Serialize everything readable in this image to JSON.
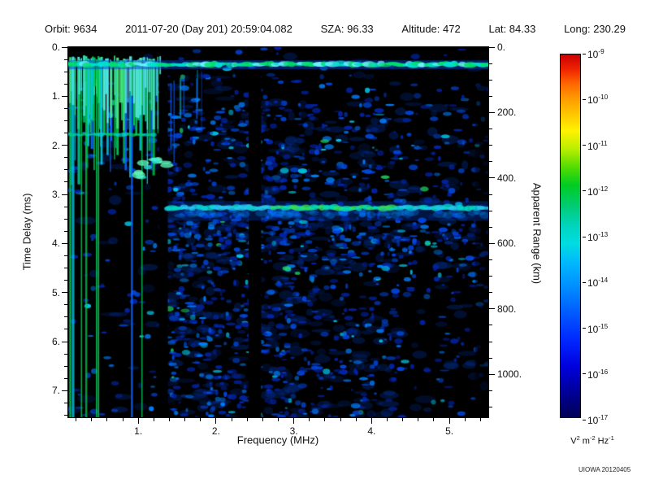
{
  "header": {
    "items": [
      "Orbit: 9634",
      "2011-07-20 (Day 201) 20:59:04.082",
      "SZA:  96.33",
      "Altitude:    472",
      "Lat:  84.33",
      "Long: 230.29"
    ]
  },
  "chart_data": {
    "type": "heatmap",
    "description": "Radar sounder ionogram: received spectral density vs frequency and time delay",
    "xlabel": "Frequency (MHz)",
    "x_range": [
      0.1,
      5.5
    ],
    "x_ticks": [
      1,
      2,
      3,
      4,
      5
    ],
    "x_minor_step": 0.2,
    "ylabel_left": "Time Delay (ms)",
    "y_range": [
      0,
      7.54
    ],
    "y_ticks_left": [
      0,
      1,
      2,
      3,
      4,
      5,
      6,
      7
    ],
    "y_minor_step": 0.25,
    "ylabel_right": "Apparent Range (km)",
    "y_ticks_right": [
      0,
      200,
      400,
      600,
      800,
      1000
    ],
    "y_right_minor_step": 50,
    "range_km_per_ms": 150,
    "background": "#000000",
    "colorbar": {
      "tick_exponents": [
        -9,
        -10,
        -11,
        -12,
        -13,
        -14,
        -15,
        -16,
        -17
      ],
      "unit_parts": [
        [
          "V",
          "2"
        ],
        [
          " m",
          "-2"
        ],
        [
          " Hz",
          "-1"
        ]
      ],
      "gradient_stops": [
        [
          0.0,
          "#cc0000"
        ],
        [
          0.04,
          "#ee2200"
        ],
        [
          0.08,
          "#ff6600"
        ],
        [
          0.12,
          "#ff9900"
        ],
        [
          0.17,
          "#ffcc00"
        ],
        [
          0.21,
          "#fff200"
        ],
        [
          0.26,
          "#baee00"
        ],
        [
          0.31,
          "#55dd00"
        ],
        [
          0.36,
          "#00cc22"
        ],
        [
          0.42,
          "#00cc77"
        ],
        [
          0.47,
          "#00d4bb"
        ],
        [
          0.52,
          "#00dde0"
        ],
        [
          0.58,
          "#00b4ff"
        ],
        [
          0.65,
          "#0087ff"
        ],
        [
          0.72,
          "#0055ff"
        ],
        [
          0.79,
          "#0026ff"
        ],
        [
          0.86,
          "#0000dd"
        ],
        [
          0.93,
          "#000099"
        ],
        [
          1.0,
          "#000055"
        ]
      ]
    },
    "features": {
      "seed": 20120405,
      "ionosphere_echo_delay_ms": 0.35,
      "surface_echo_delay_ms": 3.27,
      "surface_echo_min_freq_mhz": 1.38,
      "plasma_line_max_freq_mhz": 1.3,
      "local_resonance_delay_ms": 1.78,
      "cusp_freq_mhz": 1.2,
      "cusp_delay_ms": 2.45,
      "gaps": [
        {
          "f_start": 1.27,
          "f_end": 1.38,
          "t_start": 0.55
        },
        {
          "f_start": 2.42,
          "f_end": 2.58,
          "t_start": 0.55
        }
      ],
      "noise_palette": [
        "#0026b0",
        "#0048e0",
        "#0080ff",
        "#00ccee"
      ],
      "bright_palette": [
        "#00e06a",
        "#00e0d0",
        "#70f0ff"
      ],
      "stripe_palette": [
        "#00c853",
        "#00c5de",
        "#0a62ff"
      ]
    }
  },
  "credit": "UIOWA 20120405"
}
